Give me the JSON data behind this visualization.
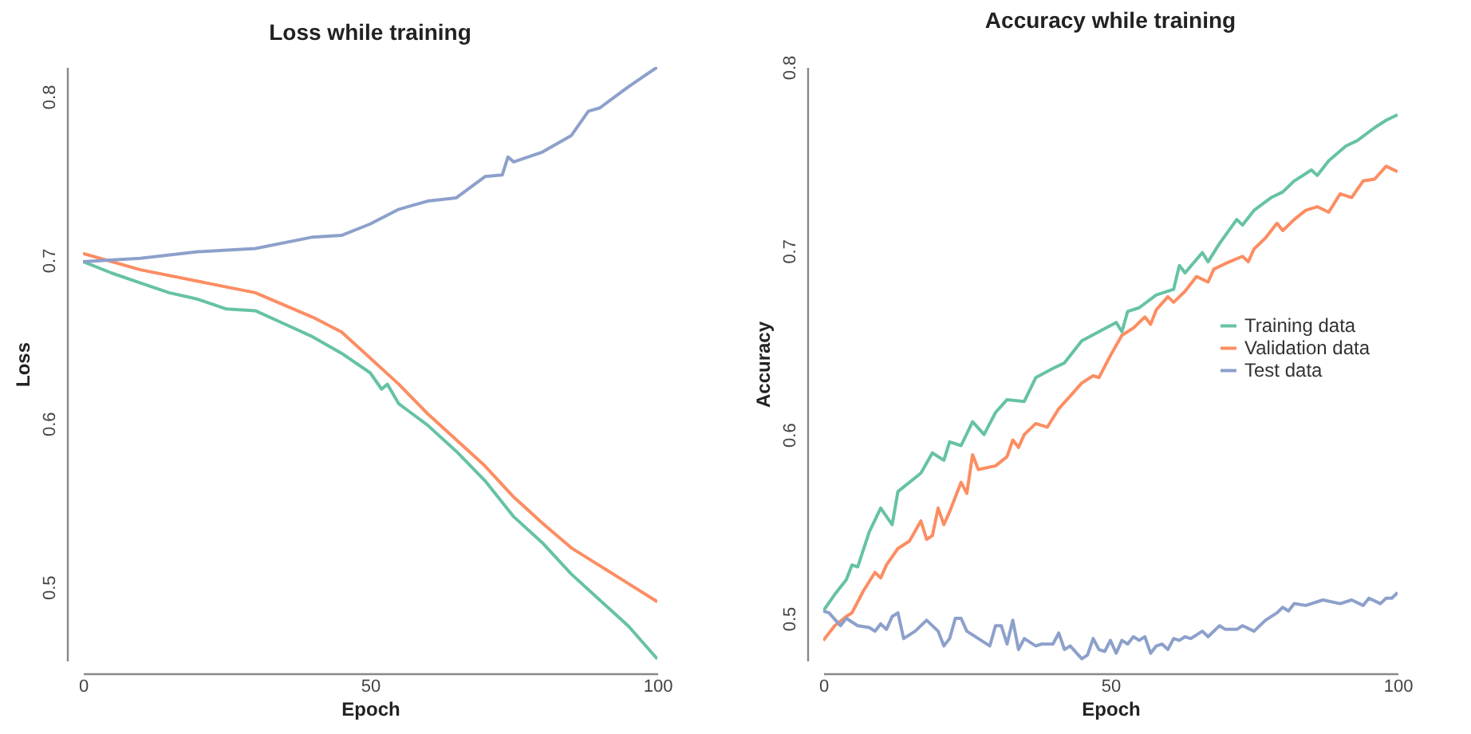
{
  "chart_data": [
    {
      "type": "line",
      "title": "Loss while training",
      "xlabel": "Epoch",
      "ylabel": "Loss",
      "xlim": [
        0,
        100
      ],
      "xticks": [
        0,
        50,
        100
      ],
      "ylim": [
        0.455,
        0.818
      ],
      "yticks": [
        0.5,
        0.6,
        0.7,
        0.8
      ],
      "grid": false,
      "series": [
        {
          "color": "#66c2a5",
          "x": [
            0,
            5,
            10,
            15,
            20,
            25,
            30,
            35,
            40,
            45,
            50,
            52,
            53,
            55,
            60,
            65,
            70,
            75,
            80,
            85,
            90,
            95,
            100
          ],
          "values": [
            0.699,
            0.692,
            0.686,
            0.68,
            0.676,
            0.67,
            0.669,
            0.661,
            0.653,
            0.643,
            0.631,
            0.621,
            0.624,
            0.612,
            0.599,
            0.583,
            0.565,
            0.543,
            0.527,
            0.508,
            0.492,
            0.476,
            0.456
          ]
        },
        {
          "color": "#fc8d62",
          "x": [
            0,
            10,
            20,
            30,
            40,
            45,
            50,
            55,
            60,
            65,
            70,
            75,
            80,
            85,
            90,
            95,
            100
          ],
          "values": [
            0.704,
            0.694,
            0.687,
            0.68,
            0.665,
            0.656,
            0.64,
            0.624,
            0.606,
            0.59,
            0.574,
            0.555,
            0.539,
            0.524,
            0.513,
            0.502,
            0.491
          ]
        },
        {
          "color": "#8da0cb",
          "x": [
            0,
            10,
            20,
            30,
            40,
            45,
            50,
            55,
            60,
            65,
            70,
            73,
            74,
            75,
            80,
            85,
            88,
            90,
            95,
            100
          ],
          "values": [
            0.699,
            0.701,
            0.705,
            0.707,
            0.714,
            0.715,
            0.722,
            0.731,
            0.736,
            0.738,
            0.751,
            0.752,
            0.763,
            0.76,
            0.766,
            0.776,
            0.791,
            0.793,
            0.806,
            0.818
          ]
        }
      ]
    },
    {
      "type": "line",
      "title": "Accuracy while training",
      "xlabel": "Epoch",
      "ylabel": "Accuracy",
      "xlim": [
        0,
        100
      ],
      "xticks": [
        0,
        50,
        100
      ],
      "ylim": [
        0.477,
        0.8
      ],
      "yticks": [
        0.5,
        0.6,
        0.7,
        0.8
      ],
      "grid": false,
      "legend": "right",
      "series": [
        {
          "name": "Training data",
          "color": "#66c2a5",
          "x": [
            0,
            2,
            4,
            5,
            6,
            8,
            10,
            12,
            13,
            15,
            17,
            19,
            21,
            22,
            24,
            26,
            28,
            30,
            32,
            35,
            37,
            40,
            42,
            45,
            48,
            51,
            52,
            53,
            55,
            58,
            61,
            62,
            63,
            66,
            67,
            69,
            72,
            73,
            75,
            78,
            80,
            82,
            85,
            86,
            88,
            91,
            93,
            96,
            98,
            100
          ],
          "values": [
            0.504,
            0.513,
            0.521,
            0.529,
            0.528,
            0.547,
            0.56,
            0.551,
            0.569,
            0.574,
            0.579,
            0.59,
            0.586,
            0.596,
            0.594,
            0.607,
            0.6,
            0.612,
            0.619,
            0.618,
            0.631,
            0.636,
            0.639,
            0.651,
            0.656,
            0.661,
            0.656,
            0.667,
            0.669,
            0.676,
            0.679,
            0.692,
            0.688,
            0.699,
            0.694,
            0.704,
            0.717,
            0.714,
            0.722,
            0.729,
            0.732,
            0.738,
            0.744,
            0.741,
            0.749,
            0.757,
            0.76,
            0.767,
            0.771,
            0.774
          ]
        },
        {
          "name": "Validation data",
          "color": "#fc8d62",
          "x": [
            0,
            2,
            4,
            5,
            7,
            9,
            10,
            11,
            13,
            15,
            17,
            18,
            19,
            20,
            21,
            22,
            24,
            25,
            26,
            27,
            30,
            32,
            33,
            34,
            35,
            37,
            39,
            41,
            43,
            45,
            47,
            48,
            50,
            52,
            54,
            56,
            57,
            58,
            60,
            61,
            63,
            65,
            67,
            68,
            70,
            73,
            74,
            75,
            77,
            79,
            80,
            82,
            84,
            86,
            88,
            90,
            92,
            94,
            96,
            98,
            100
          ],
          "values": [
            0.488,
            0.496,
            0.501,
            0.503,
            0.515,
            0.525,
            0.522,
            0.529,
            0.538,
            0.542,
            0.553,
            0.543,
            0.545,
            0.56,
            0.551,
            0.558,
            0.574,
            0.568,
            0.589,
            0.581,
            0.583,
            0.588,
            0.597,
            0.593,
            0.6,
            0.606,
            0.604,
            0.614,
            0.621,
            0.628,
            0.632,
            0.631,
            0.643,
            0.654,
            0.658,
            0.664,
            0.66,
            0.668,
            0.675,
            0.672,
            0.678,
            0.686,
            0.683,
            0.69,
            0.693,
            0.697,
            0.694,
            0.701,
            0.707,
            0.715,
            0.711,
            0.717,
            0.722,
            0.724,
            0.721,
            0.731,
            0.729,
            0.738,
            0.739,
            0.746,
            0.743
          ]
        },
        {
          "name": "Test data",
          "color": "#8da0cb",
          "x": [
            0,
            1,
            3,
            4,
            6,
            8,
            9,
            10,
            11,
            12,
            13,
            14,
            16,
            18,
            20,
            21,
            22,
            23,
            24,
            25,
            27,
            29,
            30,
            31,
            32,
            33,
            34,
            35,
            37,
            38,
            40,
            41,
            42,
            43,
            45,
            46,
            47,
            48,
            49,
            50,
            51,
            52,
            53,
            54,
            55,
            56,
            57,
            58,
            59,
            60,
            61,
            62,
            63,
            64,
            66,
            67,
            69,
            70,
            72,
            73,
            75,
            77,
            79,
            80,
            81,
            82,
            84,
            85,
            87,
            90,
            92,
            94,
            95,
            97,
            98,
            99,
            100
          ],
          "values": [
            0.504,
            0.503,
            0.496,
            0.5,
            0.496,
            0.495,
            0.493,
            0.497,
            0.494,
            0.501,
            0.503,
            0.489,
            0.493,
            0.499,
            0.493,
            0.485,
            0.489,
            0.5,
            0.5,
            0.493,
            0.489,
            0.485,
            0.496,
            0.496,
            0.486,
            0.499,
            0.483,
            0.489,
            0.485,
            0.486,
            0.486,
            0.492,
            0.483,
            0.485,
            0.478,
            0.48,
            0.489,
            0.483,
            0.482,
            0.488,
            0.481,
            0.488,
            0.486,
            0.49,
            0.488,
            0.49,
            0.481,
            0.485,
            0.486,
            0.483,
            0.489,
            0.488,
            0.49,
            0.489,
            0.493,
            0.49,
            0.496,
            0.494,
            0.494,
            0.496,
            0.493,
            0.499,
            0.503,
            0.506,
            0.504,
            0.508,
            0.507,
            0.508,
            0.51,
            0.508,
            0.51,
            0.507,
            0.511,
            0.508,
            0.511,
            0.511,
            0.514
          ]
        }
      ]
    }
  ]
}
